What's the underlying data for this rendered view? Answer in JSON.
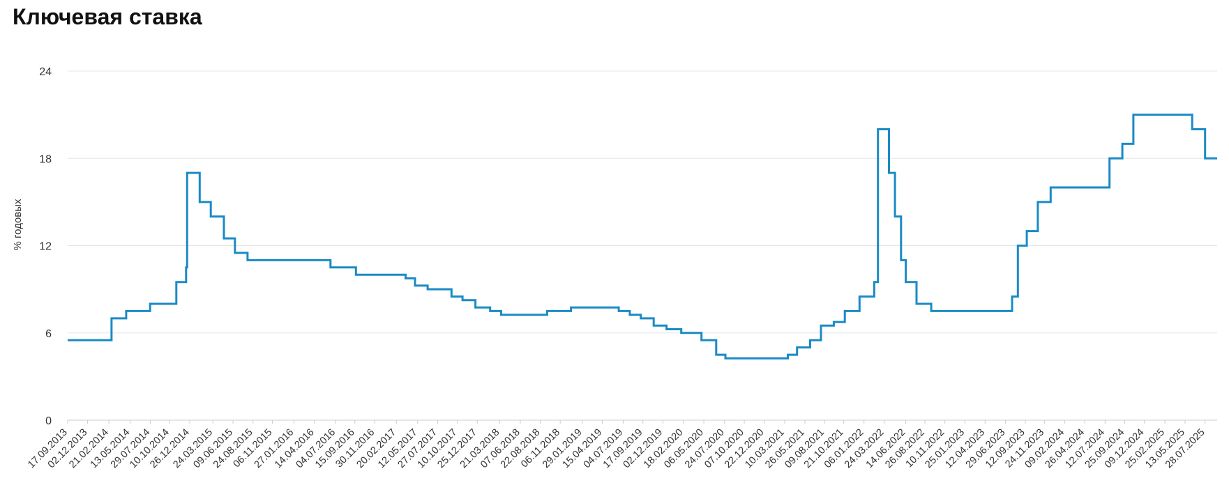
{
  "chart_data": {
    "type": "line",
    "title": "Ключевая ставка",
    "ylabel": "% годовых",
    "xlabel": "",
    "ylim": [
      0,
      24
    ],
    "yticks": [
      0,
      6,
      12,
      18,
      24
    ],
    "grid": true,
    "line_color": "#1a8ac6",
    "step": true,
    "xlim": [
      "2013-09-17",
      "2025-09-12"
    ],
    "xtick_labels": [
      "17.09.2013",
      "02.12.2013",
      "21.02.2014",
      "13.05.2014",
      "29.07.2014",
      "10.10.2014",
      "26.12.2014",
      "24.03.2015",
      "09.06.2015",
      "24.08.2015",
      "06.11.2015",
      "27.01.2016",
      "14.04.2016",
      "04.07.2016",
      "15.09.2016",
      "30.11.2016",
      "20.02.2017",
      "12.05.2017",
      "27.07.2017",
      "10.10.2017",
      "25.12.2017",
      "21.03.2018",
      "07.06.2018",
      "22.08.2018",
      "06.11.2018",
      "29.01.2019",
      "15.04.2019",
      "04.07.2019",
      "17.09.2019",
      "02.12.2019",
      "18.02.2020",
      "06.05.2020",
      "24.07.2020",
      "07.10.2020",
      "22.12.2020",
      "10.03.2021",
      "26.05.2021",
      "09.08.2021",
      "21.10.2021",
      "06.01.2022",
      "24.03.2022",
      "14.06.2022",
      "26.08.2022",
      "10.11.2022",
      "25.01.2023",
      "12.04.2023",
      "29.06.2023",
      "12.09.2023",
      "24.11.2023",
      "09.02.2024",
      "26.04.2024",
      "12.07.2024",
      "25.09.2024",
      "09.12.2024",
      "25.02.2025",
      "13.05.2025",
      "28.07.2025"
    ],
    "series": [
      {
        "x": [
          "2013-09-17",
          "2014-03-03",
          "2014-04-28",
          "2014-07-28",
          "2014-11-05",
          "2014-12-12",
          "2014-12-16",
          "2015-02-02",
          "2015-03-16",
          "2015-05-05",
          "2015-06-16",
          "2015-08-03",
          "2016-06-14",
          "2016-09-19",
          "2017-03-27",
          "2017-05-02",
          "2017-06-19",
          "2017-09-18",
          "2017-10-30",
          "2017-12-18",
          "2018-02-12",
          "2018-03-26",
          "2018-09-17",
          "2018-12-17",
          "2019-06-17",
          "2019-07-29",
          "2019-09-09",
          "2019-10-28",
          "2019-12-16",
          "2020-02-10",
          "2020-04-27",
          "2020-06-22",
          "2020-07-27",
          "2021-03-22",
          "2021-04-26",
          "2021-06-15",
          "2021-07-26",
          "2021-09-13",
          "2021-10-25",
          "2021-12-20",
          "2022-02-14",
          "2022-02-28",
          "2022-04-11",
          "2022-05-04",
          "2022-05-27",
          "2022-06-14",
          "2022-07-25",
          "2022-09-19",
          "2023-07-24",
          "2023-08-15",
          "2023-09-18",
          "2023-10-30",
          "2023-12-18",
          "2024-07-29",
          "2024-09-16",
          "2024-10-28",
          "2025-06-09",
          "2025-07-28",
          "2025-09-12"
        ],
        "values": [
          5.5,
          7,
          7.5,
          8,
          9.5,
          10.5,
          17,
          15,
          14,
          12.5,
          11.5,
          11,
          10.5,
          10,
          9.75,
          9.25,
          9,
          8.5,
          8.25,
          7.75,
          7.5,
          7.25,
          7.5,
          7.75,
          7.5,
          7.25,
          7,
          6.5,
          6.25,
          6,
          5.5,
          4.5,
          4.25,
          4.5,
          5,
          5.5,
          6.5,
          6.75,
          7.5,
          8.5,
          9.5,
          20,
          17,
          14,
          11,
          9.5,
          8,
          7.5,
          8.5,
          12,
          13,
          15,
          16,
          18,
          19,
          21,
          20,
          18,
          18
        ]
      }
    ]
  }
}
